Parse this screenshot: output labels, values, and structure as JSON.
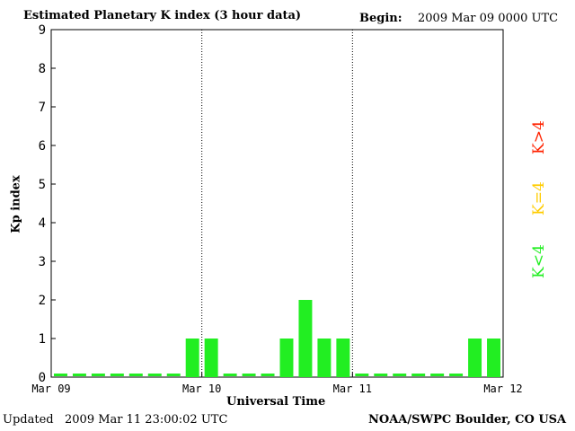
{
  "header": {
    "title": "Estimated Planetary K index (3 hour data)",
    "begin_label": "Begin:",
    "begin_value": "2009 Mar 09 0000 UTC"
  },
  "footer": {
    "updated_label": "Updated",
    "updated_value": "2009 Mar 11 23:00:02 UTC",
    "source": "NOAA/SWPC Boulder, CO USA"
  },
  "legend": {
    "above": "K>4",
    "equal": "K=4",
    "below": "K<4"
  },
  "colors": {
    "below": "#22ee22",
    "equal": "#ffcc00",
    "above": "#ff2200"
  },
  "chart_data": {
    "type": "bar",
    "title": "Estimated Planetary K index (3 hour data)",
    "xlabel": "Universal Time",
    "ylabel": "Kp index",
    "ylim": [
      0,
      9
    ],
    "yticks": [
      "0",
      "1",
      "2",
      "3",
      "4",
      "5",
      "6",
      "7",
      "8",
      "9"
    ],
    "xticks": [
      "Mar 09",
      "Mar 10",
      "Mar 11",
      "Mar 12"
    ],
    "interval_hours": 3,
    "values": [
      0,
      0,
      0,
      0,
      0,
      0,
      0,
      1,
      1,
      0,
      0,
      0,
      1,
      2,
      1,
      1,
      0,
      0,
      0,
      0,
      0,
      0,
      1,
      1
    ],
    "grid": "dotted vertical lines at day boundaries"
  }
}
